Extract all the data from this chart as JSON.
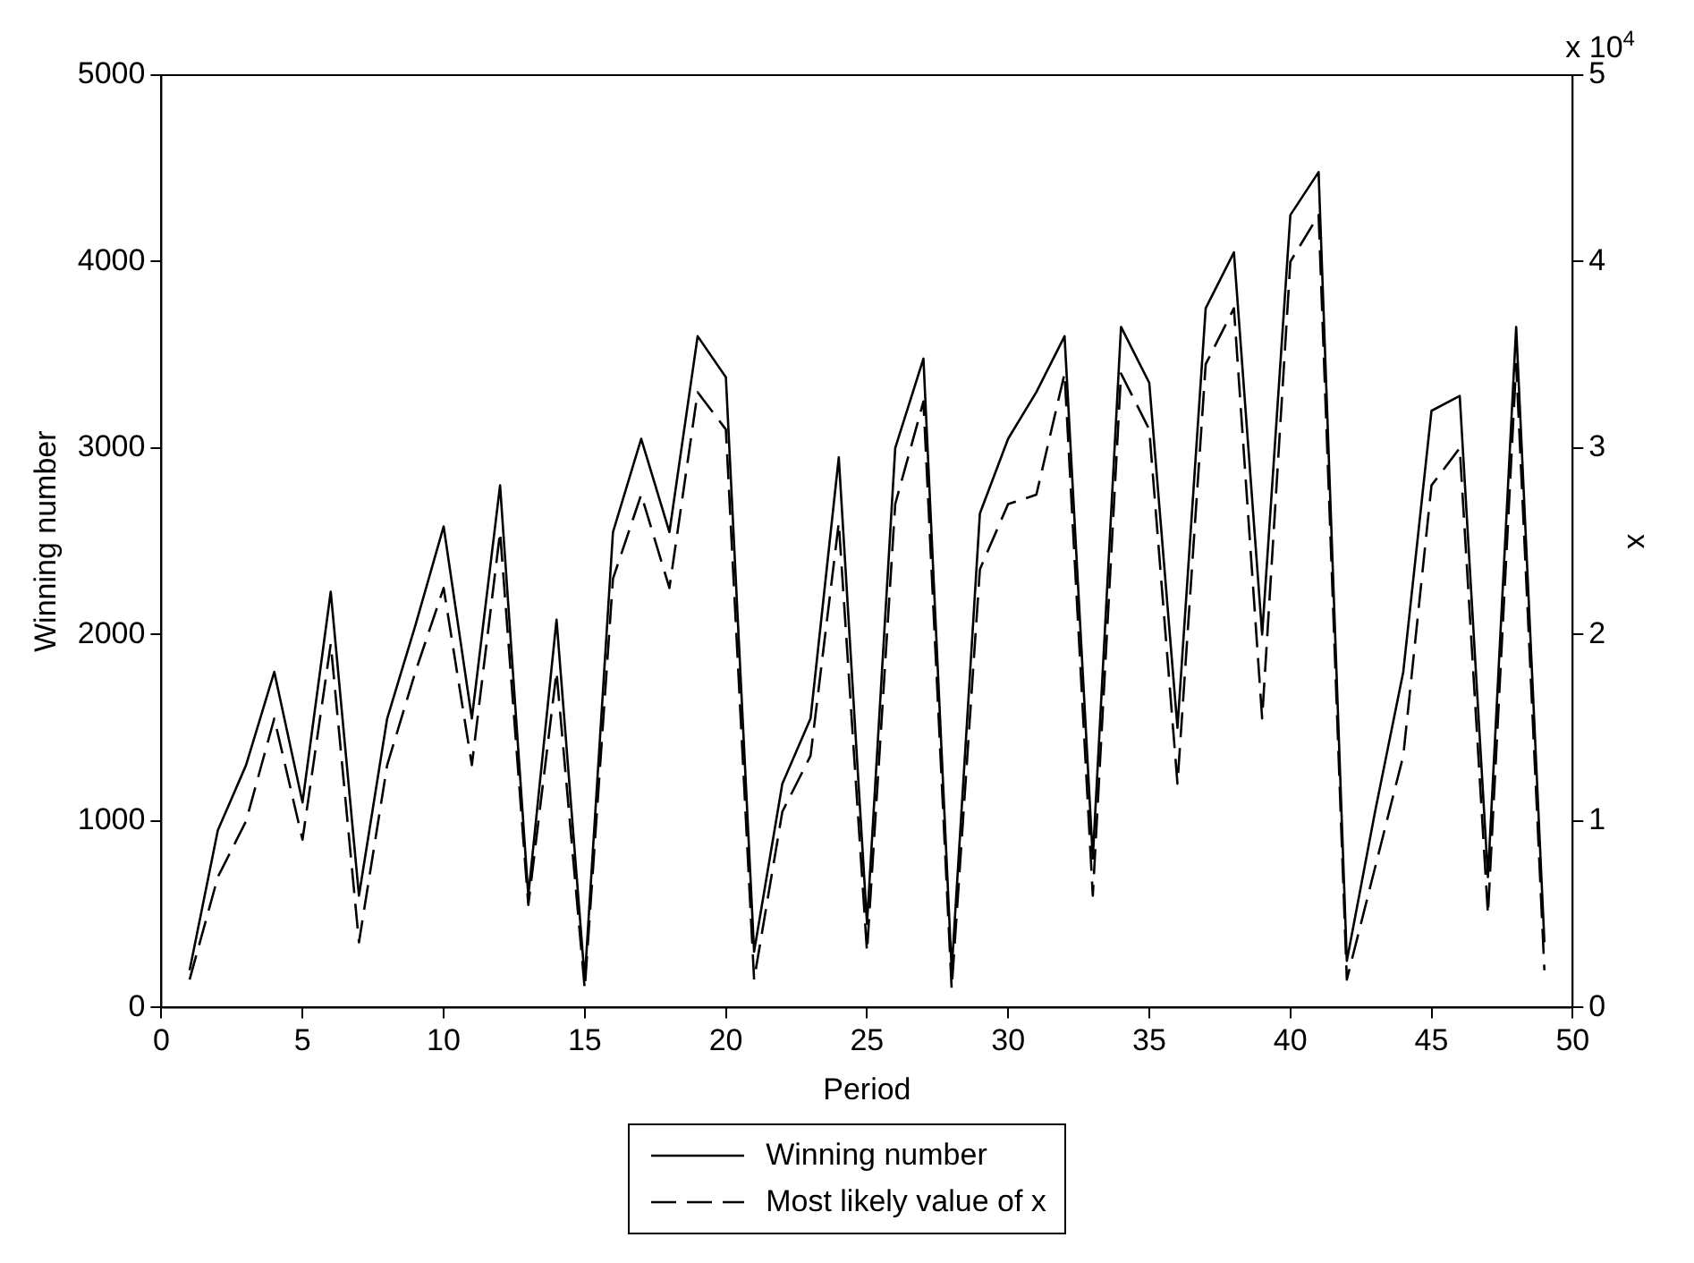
{
  "chart_data": {
    "type": "line",
    "xlabel": "Period",
    "ylabel": "Winning number",
    "y2label": "x",
    "annotations": [
      "x 10$^{4}$"
    ],
    "x": [
      1,
      2,
      3,
      4,
      5,
      6,
      7,
      8,
      9,
      10,
      11,
      12,
      13,
      14,
      15,
      16,
      17,
      18,
      19,
      20,
      21,
      22,
      23,
      24,
      25,
      26,
      27,
      28,
      29,
      30,
      31,
      32,
      33,
      34,
      35,
      36,
      37,
      38,
      39,
      40,
      41,
      42,
      43,
      44,
      45,
      46,
      47,
      48,
      49
    ],
    "series": [
      {
        "name": "Winning number",
        "color": "#000000",
        "line_style": "solid",
        "values": [
          200,
          950,
          1300,
          1800,
          1100,
          2230,
          600,
          1550,
          2050,
          2580,
          1550,
          2800,
          600,
          2080,
          150,
          2550,
          3050,
          2550,
          3600,
          3380,
          300,
          1200,
          1550,
          2950,
          450,
          3000,
          3480,
          200,
          2650,
          3050,
          3300,
          3600,
          800,
          3650,
          3350,
          1500,
          3750,
          4050,
          2000,
          4250,
          4480,
          250,
          1050,
          1800,
          3200,
          3280,
          700,
          3650,
          350
        ]
      },
      {
        "name": "Most likely value of x",
        "color": "#000000",
        "line_style": "dashed",
        "axis": "y2",
        "values": [
          0.15,
          0.7,
          1.0,
          1.55,
          0.9,
          1.95,
          0.35,
          1.3,
          1.8,
          2.25,
          1.3,
          2.55,
          0.55,
          1.8,
          0.1,
          2.3,
          2.75,
          2.25,
          3.3,
          3.1,
          0.15,
          1.05,
          1.35,
          2.6,
          0.3,
          2.7,
          3.25,
          0.1,
          2.35,
          2.7,
          2.75,
          3.4,
          0.6,
          3.4,
          3.1,
          1.2,
          3.45,
          3.75,
          1.55,
          4.0,
          4.25,
          0.15,
          0.75,
          1.35,
          2.8,
          3.0,
          0.5,
          3.45,
          0.2
        ]
      }
    ],
    "xlim": [
      0,
      50
    ],
    "xticks": [
      0,
      5,
      10,
      15,
      20,
      25,
      30,
      35,
      40,
      45,
      50
    ],
    "ylim": [
      0,
      5000
    ],
    "yticks": [
      0,
      1000,
      2000,
      3000,
      4000,
      5000
    ],
    "y2lim": [
      0,
      5
    ],
    "y2ticks": [
      0,
      1,
      2,
      3,
      4,
      5
    ],
    "grid": false,
    "legend": "bottom",
    "marker": "none"
  }
}
